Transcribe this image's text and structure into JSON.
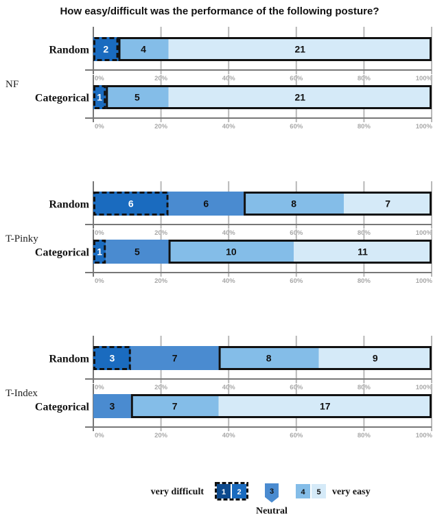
{
  "chart_data": {
    "type": "bar",
    "stacked": "horizontal-percent",
    "title": "How easy/difficult was the performance of the following posture?",
    "colors": {
      "1": "#0d4a8e",
      "2": "#1a6bbf",
      "3": "#4a8bd0",
      "4": "#84bde8",
      "5": "#d5eaf8",
      "outline": "#111111",
      "axis": "#777777",
      "grid": "#b8b8b8"
    },
    "x_ticks": [
      "0%",
      "20%",
      "40%",
      "60%",
      "80%",
      "100%"
    ],
    "xlim": [
      0,
      100
    ],
    "groups": [
      {
        "label": "NF",
        "rows": [
          {
            "label": "Random",
            "segments": [
              {
                "level": "1",
                "value": 0
              },
              {
                "level": "2",
                "value": 2,
                "text": "2"
              },
              {
                "level": "3",
                "value": 0
              },
              {
                "level": "4",
                "value": 4,
                "text": "4"
              },
              {
                "level": "5",
                "value": 21,
                "text": "21"
              }
            ]
          },
          {
            "label": "Categorical",
            "segments": [
              {
                "level": "1",
                "value": 0
              },
              {
                "level": "2",
                "value": 1,
                "text": "1"
              },
              {
                "level": "3",
                "value": 0
              },
              {
                "level": "4",
                "value": 5,
                "text": "5"
              },
              {
                "level": "5",
                "value": 21,
                "text": "21"
              }
            ]
          }
        ]
      },
      {
        "label": "T-Pinky",
        "rows": [
          {
            "label": "Random",
            "segments": [
              {
                "level": "1",
                "value": 0
              },
              {
                "level": "2",
                "value": 6,
                "text": "6"
              },
              {
                "level": "3",
                "value": 6,
                "text": "6"
              },
              {
                "level": "4",
                "value": 8,
                "text": "8"
              },
              {
                "level": "5",
                "value": 7,
                "text": "7"
              }
            ]
          },
          {
            "label": "Categorical",
            "segments": [
              {
                "level": "1",
                "value": 0
              },
              {
                "level": "2",
                "value": 1,
                "text": "1"
              },
              {
                "level": "3",
                "value": 5,
                "text": "5"
              },
              {
                "level": "4",
                "value": 10,
                "text": "10"
              },
              {
                "level": "5",
                "value": 11,
                "text": "11"
              }
            ]
          }
        ]
      },
      {
        "label": "T-Index",
        "rows": [
          {
            "label": "Random",
            "segments": [
              {
                "level": "1",
                "value": 0
              },
              {
                "level": "2",
                "value": 3,
                "text": "3"
              },
              {
                "level": "3",
                "value": 7,
                "text": "7"
              },
              {
                "level": "4",
                "value": 8,
                "text": "8"
              },
              {
                "level": "5",
                "value": 9,
                "text": "9"
              }
            ]
          },
          {
            "label": "Categorical",
            "segments": [
              {
                "level": "1",
                "value": 0
              },
              {
                "level": "2",
                "value": 0
              },
              {
                "level": "3",
                "value": 3,
                "text": "3"
              },
              {
                "level": "4",
                "value": 7,
                "text": "7"
              },
              {
                "level": "5",
                "value": 17,
                "text": "17"
              }
            ]
          }
        ]
      }
    ],
    "legend": {
      "left_text": "very difficult",
      "right_text": "very easy",
      "neutral_text": "Neutral",
      "numbers": [
        "1",
        "2",
        "3",
        "4",
        "5"
      ],
      "placement": "bottom"
    }
  }
}
